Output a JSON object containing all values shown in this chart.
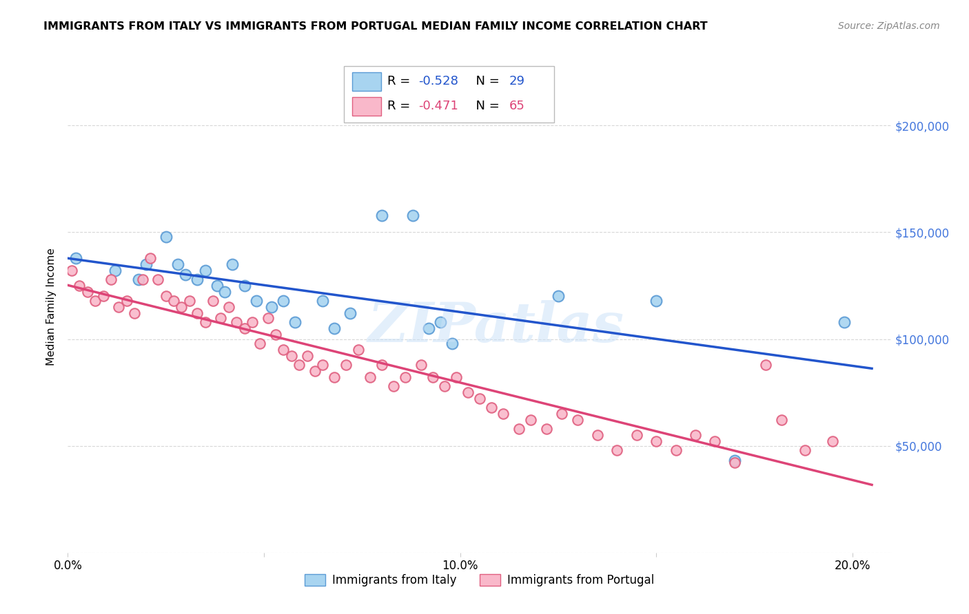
{
  "title": "IMMIGRANTS FROM ITALY VS IMMIGRANTS FROM PORTUGAL MEDIAN FAMILY INCOME CORRELATION CHART",
  "source": "Source: ZipAtlas.com",
  "ylabel": "Median Family Income",
  "y_ticks": [
    0,
    50000,
    100000,
    150000,
    200000
  ],
  "y_tick_labels": [
    "",
    "$50,000",
    "$100,000",
    "$150,000",
    "$200,000"
  ],
  "x_ticks": [
    0.0,
    0.05,
    0.1,
    0.15,
    0.2
  ],
  "x_tick_labels": [
    "0.0%",
    "",
    "10.0%",
    "",
    "20.0%"
  ],
  "xlim": [
    0.0,
    0.21
  ],
  "ylim": [
    0,
    230000
  ],
  "italy_color": "#a8d4f0",
  "italy_edge": "#5b9bd5",
  "portugal_color": "#f9b8ca",
  "portugal_edge": "#e06080",
  "italy_line_color": "#2255cc",
  "portugal_line_color": "#dd4477",
  "italy_R": -0.528,
  "italy_N": 29,
  "portugal_R": -0.471,
  "portugal_N": 65,
  "background_color": "#ffffff",
  "grid_color": "#d8d8d8",
  "right_label_color": "#4477dd",
  "italy_x": [
    0.002,
    0.012,
    0.018,
    0.02,
    0.025,
    0.028,
    0.03,
    0.033,
    0.035,
    0.038,
    0.04,
    0.042,
    0.045,
    0.048,
    0.052,
    0.055,
    0.058,
    0.065,
    0.068,
    0.072,
    0.08,
    0.088,
    0.092,
    0.095,
    0.098,
    0.125,
    0.15,
    0.17,
    0.198
  ],
  "italy_y": [
    138000,
    132000,
    128000,
    135000,
    148000,
    135000,
    130000,
    128000,
    132000,
    125000,
    122000,
    135000,
    125000,
    118000,
    115000,
    118000,
    108000,
    118000,
    105000,
    112000,
    158000,
    158000,
    105000,
    108000,
    98000,
    120000,
    118000,
    43000,
    108000
  ],
  "portugal_x": [
    0.001,
    0.003,
    0.005,
    0.007,
    0.009,
    0.011,
    0.013,
    0.015,
    0.017,
    0.019,
    0.021,
    0.023,
    0.025,
    0.027,
    0.029,
    0.031,
    0.033,
    0.035,
    0.037,
    0.039,
    0.041,
    0.043,
    0.045,
    0.047,
    0.049,
    0.051,
    0.053,
    0.055,
    0.057,
    0.059,
    0.061,
    0.063,
    0.065,
    0.068,
    0.071,
    0.074,
    0.077,
    0.08,
    0.083,
    0.086,
    0.09,
    0.093,
    0.096,
    0.099,
    0.102,
    0.105,
    0.108,
    0.111,
    0.115,
    0.118,
    0.122,
    0.126,
    0.13,
    0.135,
    0.14,
    0.145,
    0.15,
    0.155,
    0.16,
    0.165,
    0.17,
    0.178,
    0.182,
    0.188,
    0.195
  ],
  "portugal_y": [
    132000,
    125000,
    122000,
    118000,
    120000,
    128000,
    115000,
    118000,
    112000,
    128000,
    138000,
    128000,
    120000,
    118000,
    115000,
    118000,
    112000,
    108000,
    118000,
    110000,
    115000,
    108000,
    105000,
    108000,
    98000,
    110000,
    102000,
    95000,
    92000,
    88000,
    92000,
    85000,
    88000,
    82000,
    88000,
    95000,
    82000,
    88000,
    78000,
    82000,
    88000,
    82000,
    78000,
    82000,
    75000,
    72000,
    68000,
    65000,
    58000,
    62000,
    58000,
    65000,
    62000,
    55000,
    48000,
    55000,
    52000,
    48000,
    55000,
    52000,
    42000,
    88000,
    62000,
    48000,
    52000
  ]
}
